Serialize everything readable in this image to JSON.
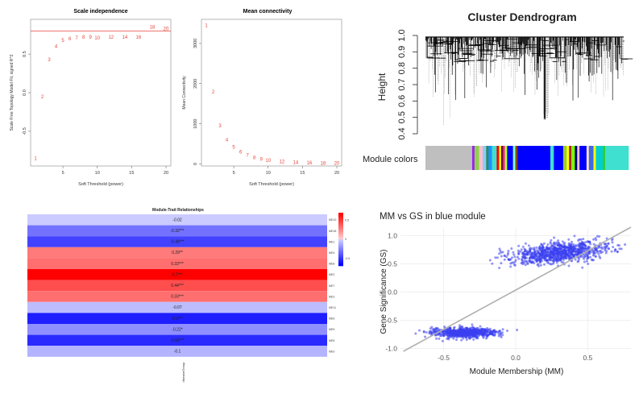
{
  "chart_data": [
    {
      "type": "scatter",
      "panel": "scale-independence",
      "title": "Scale independence",
      "xlabel": "Soft Threshold (power)",
      "ylabel": "Scale Free Topology Model Fit, signed R^2",
      "xlim": [
        1,
        20
      ],
      "ylim": [
        -0.95,
        0.95
      ],
      "xticks": [
        "5",
        "10",
        "15",
        "20"
      ],
      "yticks": [
        "-0.5",
        "0.0",
        "0.5"
      ],
      "cutoff": 0.8,
      "cutoff_color": "#e8453c",
      "point_color": "#e8453c",
      "points": [
        {
          "label": "1",
          "x": 1,
          "y": -0.85
        },
        {
          "label": "2",
          "x": 2,
          "y": -0.05
        },
        {
          "label": "3",
          "x": 3,
          "y": 0.43
        },
        {
          "label": "4",
          "x": 4,
          "y": 0.6
        },
        {
          "label": "5",
          "x": 5,
          "y": 0.68
        },
        {
          "label": "6",
          "x": 6,
          "y": 0.7
        },
        {
          "label": "7",
          "x": 7,
          "y": 0.71
        },
        {
          "label": "8",
          "x": 8,
          "y": 0.72
        },
        {
          "label": "9",
          "x": 9,
          "y": 0.72
        },
        {
          "label": "10",
          "x": 10,
          "y": 0.71
        },
        {
          "label": "12",
          "x": 12,
          "y": 0.72
        },
        {
          "label": "14",
          "x": 14,
          "y": 0.72
        },
        {
          "label": "16",
          "x": 16,
          "y": 0.72
        },
        {
          "label": "18",
          "x": 18,
          "y": 0.85
        },
        {
          "label": "20",
          "x": 20,
          "y": 0.83
        }
      ]
    },
    {
      "type": "scatter",
      "panel": "mean-connectivity",
      "title": "Mean connectivity",
      "xlabel": "Soft Threshold (power)",
      "ylabel": "Mean Connectivity",
      "xlim": [
        1,
        20
      ],
      "ylim": [
        -50,
        3600
      ],
      "xticks": [
        "5",
        "10",
        "15",
        "20"
      ],
      "yticks": [
        "0",
        "1000",
        "2000",
        "3000"
      ],
      "point_color": "#e8453c",
      "points": [
        {
          "label": "1",
          "x": 1,
          "y": 3450
        },
        {
          "label": "2",
          "x": 2,
          "y": 1800
        },
        {
          "label": "3",
          "x": 3,
          "y": 950
        },
        {
          "label": "4",
          "x": 4,
          "y": 600
        },
        {
          "label": "5",
          "x": 5,
          "y": 420
        },
        {
          "label": "6",
          "x": 6,
          "y": 300
        },
        {
          "label": "7",
          "x": 7,
          "y": 220
        },
        {
          "label": "8",
          "x": 8,
          "y": 160
        },
        {
          "label": "9",
          "x": 9,
          "y": 120
        },
        {
          "label": "10",
          "x": 10,
          "y": 90
        },
        {
          "label": "12",
          "x": 12,
          "y": 60
        },
        {
          "label": "14",
          "x": 14,
          "y": 45
        },
        {
          "label": "16",
          "x": 16,
          "y": 35
        },
        {
          "label": "18",
          "x": 18,
          "y": 25
        },
        {
          "label": "20",
          "x": 20,
          "y": 20
        }
      ]
    },
    {
      "type": "dendrogram",
      "panel": "cluster-dendrogram",
      "title": "Cluster Dendrogram",
      "ylabel": "Height",
      "ylim": [
        0.4,
        1.0
      ],
      "yticks": [
        "0.4",
        "0.5",
        "0.6",
        "0.7",
        "0.8",
        "0.9",
        "1.0"
      ],
      "color_bar_label": "Module colors",
      "module_colors": [
        {
          "color": "#bfbfbf",
          "weight": 40
        },
        {
          "color": "#a020f0",
          "weight": 2
        },
        {
          "color": "#8fd14f",
          "weight": 4
        },
        {
          "color": "#ffc0cb",
          "weight": 3
        },
        {
          "color": "#87cefa",
          "weight": 3
        },
        {
          "color": "#2e8b57",
          "weight": 2
        },
        {
          "color": "#1e90ff",
          "weight": 3
        },
        {
          "color": "#40e0d0",
          "weight": 4
        },
        {
          "color": "#ff0000",
          "weight": 2
        },
        {
          "color": "#ffff00",
          "weight": 2
        },
        {
          "color": "#000000",
          "weight": 1
        },
        {
          "color": "#ff1493",
          "weight": 2
        },
        {
          "color": "#adff2f",
          "weight": 2
        },
        {
          "color": "#0000ff",
          "weight": 5
        },
        {
          "color": "#7fffd4",
          "weight": 2
        },
        {
          "color": "#8b4513",
          "weight": 2
        },
        {
          "color": "#0000ff",
          "weight": 28
        },
        {
          "color": "#40e0d0",
          "weight": 3
        },
        {
          "color": "#0000ff",
          "weight": 8
        },
        {
          "color": "#9acd32",
          "weight": 3
        },
        {
          "color": "#ffff00",
          "weight": 2
        },
        {
          "color": "#a52a2a",
          "weight": 2
        },
        {
          "color": "#7cfc00",
          "weight": 3
        },
        {
          "color": "#000080",
          "weight": 2
        },
        {
          "color": "#ffc0cb",
          "weight": 2
        },
        {
          "color": "#0000ff",
          "weight": 6
        },
        {
          "color": "#ffe4c4",
          "weight": 2
        },
        {
          "color": "#4169e1",
          "weight": 4
        },
        {
          "color": "#ffff00",
          "weight": 2
        },
        {
          "color": "#00ced1",
          "weight": 6
        },
        {
          "color": "#32cd32",
          "weight": 2
        },
        {
          "color": "#40e0d0",
          "weight": 20
        }
      ]
    },
    {
      "type": "heatmap",
      "panel": "module-trait-relationships",
      "title": "Module-Trait Relationships",
      "xlabel": "",
      "ylabel": "",
      "x_tick": "diseaseGroup",
      "colorbar_ticks": [
        "0.5",
        "0",
        "-0.5"
      ],
      "color_pos": "#ff0000",
      "color_neg": "#0000ff",
      "rows": [
        {
          "label": "-0.02",
          "module": "ME10",
          "value": -0.02
        },
        {
          "label": "-0.32***",
          "module": "ME18",
          "value": -0.32
        },
        {
          "label": "-0.48***",
          "module": "ME1",
          "value": -0.48
        },
        {
          "label": "0.29**",
          "module": "ME4",
          "value": 0.29
        },
        {
          "label": "0.33***",
          "module": "ME8",
          "value": 0.33
        },
        {
          "label": "0.7***",
          "module": "ME2",
          "value": 0.7
        },
        {
          "label": "0.44***",
          "module": "ME7",
          "value": 0.44
        },
        {
          "label": "0.33***",
          "module": "ME3",
          "value": 0.33
        },
        {
          "label": "-0.07",
          "module": "ME11",
          "value": -0.07
        },
        {
          "label": "-0.6***",
          "module": "ME6",
          "value": -0.6
        },
        {
          "label": "-0.22*",
          "module": "ME9",
          "value": -0.22
        },
        {
          "label": "-0.56***",
          "module": "ME5",
          "value": -0.56
        },
        {
          "label": "-0.1",
          "module": "ME0",
          "value": -0.1
        }
      ]
    },
    {
      "type": "scatter",
      "panel": "mm-vs-gs",
      "title": "MM vs GS in blue module",
      "xlabel": "Module Membership (MM)",
      "ylabel": "Gene Significance (GS)",
      "xlim": [
        -0.8,
        0.8
      ],
      "ylim": [
        -1.05,
        1.15
      ],
      "xticks": [
        -0.5,
        0.0,
        0.5
      ],
      "yticks": [
        -1.0,
        -0.5,
        0.0,
        0.5,
        1.0
      ],
      "xtick_labels": [
        "-0.5",
        "0.0",
        "0.5"
      ],
      "ytick_labels": [
        "-1.0",
        "-0.5",
        "0.0",
        "0.5",
        "1.0"
      ],
      "point_color": "#3a3ff0",
      "fit_line": {
        "x0": -0.78,
        "y0": -1.05,
        "x1": 0.8,
        "y1": 1.2,
        "color": "#b0b0b0"
      },
      "clusters": [
        {
          "cx": 0.3,
          "cy": 0.7,
          "sx": 0.32,
          "sy": 0.17,
          "n": 900
        },
        {
          "cx": -0.35,
          "cy": -0.72,
          "sx": 0.2,
          "sy": 0.08,
          "n": 700
        }
      ]
    }
  ]
}
